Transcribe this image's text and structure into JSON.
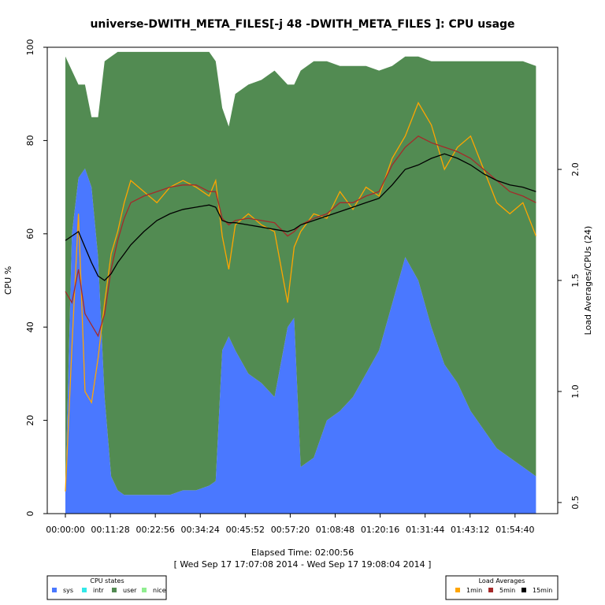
{
  "chart_data": {
    "type": "area",
    "title": "universe-DWITH_META_FILES[-j 48 -DWITH_META_FILES ]: CPU usage",
    "xlabel": "Elapsed Time: 02:00:56",
    "xlabel_sub": "[ Wed Sep 17 17:07:08 2014 - Wed Sep 17 19:08:04 2014 ]",
    "ylabel": "CPU %",
    "ylabel_right": "Load Averages/CPUs (24)",
    "x_unit": "seconds elapsed",
    "xlim": [
      0,
      7256
    ],
    "ylim": [
      0,
      100
    ],
    "y2lim": [
      0.45,
      2.55
    ],
    "x_ticks": [
      0,
      688,
      1376,
      2064,
      2752,
      3440,
      4128,
      4816,
      5504,
      6192,
      6880
    ],
    "x_tick_labels": [
      "00:00:00",
      "00:11:28",
      "00:22:56",
      "00:34:24",
      "00:45:52",
      "00:57:20",
      "01:08:48",
      "01:20:16",
      "01:31:44",
      "01:43:12",
      "01:54:40"
    ],
    "y_ticks": [
      0,
      20,
      40,
      60,
      80,
      100
    ],
    "y_tick_labels": [
      "0",
      "20",
      "40",
      "60",
      "80",
      "100"
    ],
    "y2_ticks": [
      0.5,
      1.0,
      1.5,
      2.0
    ],
    "y2_tick_labels": [
      "0.5",
      "1.0",
      "1.5",
      "2.0"
    ],
    "grid": false,
    "x": [
      0,
      100,
      200,
      300,
      400,
      500,
      600,
      700,
      800,
      900,
      1000,
      1200,
      1400,
      1600,
      1800,
      2000,
      2200,
      2300,
      2400,
      2500,
      2600,
      2800,
      3000,
      3200,
      3400,
      3500,
      3600,
      3800,
      4000,
      4200,
      4400,
      4600,
      4800,
      5000,
      5200,
      5400,
      5600,
      5800,
      6000,
      6200,
      6400,
      6600,
      6800,
      7000,
      7200
    ],
    "series": [
      {
        "name": "sys",
        "axis": "left",
        "color": "#4a78ff",
        "values": [
          5,
          60,
          72,
          74,
          70,
          55,
          25,
          8,
          5,
          4,
          4,
          4,
          4,
          4,
          5,
          5,
          6,
          7,
          35,
          38,
          35,
          30,
          28,
          25,
          40,
          42,
          10,
          12,
          20,
          22,
          25,
          30,
          35,
          45,
          55,
          50,
          40,
          32,
          28,
          22,
          18,
          14,
          12,
          10,
          8
        ]
      },
      {
        "name": "intr",
        "axis": "left",
        "color": "#33e8e8",
        "values": [
          0,
          0,
          0,
          0,
          0,
          0,
          0,
          0,
          0,
          0,
          0,
          0,
          0,
          0,
          0,
          0,
          0,
          0,
          0,
          0,
          0,
          0,
          0,
          0,
          0,
          0,
          0,
          0,
          0,
          0,
          0,
          0,
          0,
          0,
          0,
          0,
          0,
          0,
          0,
          0,
          0,
          0,
          0,
          0,
          0
        ]
      },
      {
        "name": "user",
        "axis": "left",
        "color": "#528b52",
        "values": [
          93,
          35,
          20,
          18,
          15,
          30,
          72,
          90,
          94,
          95,
          95,
          95,
          95,
          95,
          94,
          94,
          93,
          90,
          52,
          45,
          55,
          62,
          65,
          70,
          52,
          50,
          85,
          85,
          77,
          74,
          71,
          66,
          60,
          51,
          43,
          48,
          57,
          65,
          69,
          75,
          79,
          83,
          85,
          87,
          88
        ]
      },
      {
        "name": "nice",
        "axis": "left",
        "color": "#90ee90",
        "values": [
          0,
          0,
          0,
          0,
          0,
          0,
          0,
          0,
          0,
          0,
          0,
          0,
          0,
          0,
          0,
          0,
          0,
          0,
          0,
          0,
          0,
          0,
          0,
          0,
          0,
          0,
          0,
          0,
          0,
          0,
          0,
          0,
          0,
          0,
          0,
          0,
          0,
          0,
          0,
          0,
          0,
          0,
          0,
          0,
          0
        ]
      },
      {
        "name": "1min",
        "axis": "right",
        "color": "#ffa500",
        "values": [
          0.55,
          1.2,
          1.8,
          1.0,
          0.95,
          1.15,
          1.4,
          1.62,
          1.72,
          1.85,
          1.95,
          1.9,
          1.85,
          1.92,
          1.95,
          1.92,
          1.88,
          1.95,
          1.7,
          1.55,
          1.75,
          1.8,
          1.75,
          1.72,
          1.4,
          1.65,
          1.72,
          1.8,
          1.78,
          1.9,
          1.82,
          1.92,
          1.88,
          2.05,
          2.15,
          2.3,
          2.2,
          2.0,
          2.1,
          2.15,
          2.0,
          1.85,
          1.8,
          1.85,
          1.7
        ]
      },
      {
        "name": "5min",
        "axis": "right",
        "color": "#a52a2a",
        "values": [
          1.45,
          1.4,
          1.55,
          1.35,
          1.3,
          1.25,
          1.35,
          1.55,
          1.68,
          1.78,
          1.85,
          1.88,
          1.9,
          1.92,
          1.93,
          1.93,
          1.9,
          1.9,
          1.78,
          1.75,
          1.77,
          1.78,
          1.77,
          1.76,
          1.7,
          1.72,
          1.75,
          1.78,
          1.8,
          1.85,
          1.85,
          1.88,
          1.9,
          2.02,
          2.1,
          2.15,
          2.12,
          2.1,
          2.08,
          2.05,
          2.0,
          1.95,
          1.9,
          1.88,
          1.85
        ]
      },
      {
        "name": "15min",
        "axis": "right",
        "color": "#000000",
        "values": [
          1.68,
          1.7,
          1.72,
          1.65,
          1.58,
          1.52,
          1.5,
          1.53,
          1.58,
          1.62,
          1.66,
          1.72,
          1.77,
          1.8,
          1.82,
          1.83,
          1.84,
          1.83,
          1.77,
          1.76,
          1.76,
          1.75,
          1.74,
          1.73,
          1.72,
          1.73,
          1.75,
          1.77,
          1.79,
          1.81,
          1.83,
          1.85,
          1.87,
          1.93,
          2.0,
          2.02,
          2.05,
          2.07,
          2.05,
          2.02,
          1.98,
          1.95,
          1.93,
          1.92,
          1.9
        ]
      }
    ],
    "legend_cpu": {
      "title": "CPU states",
      "entries": [
        "sys",
        "intr",
        "user",
        "nice"
      ],
      "placement": "bottom-left"
    },
    "legend_load": {
      "title": "Load Averages",
      "entries": [
        "1min",
        "5min",
        "15min"
      ],
      "placement": "bottom-right"
    }
  }
}
